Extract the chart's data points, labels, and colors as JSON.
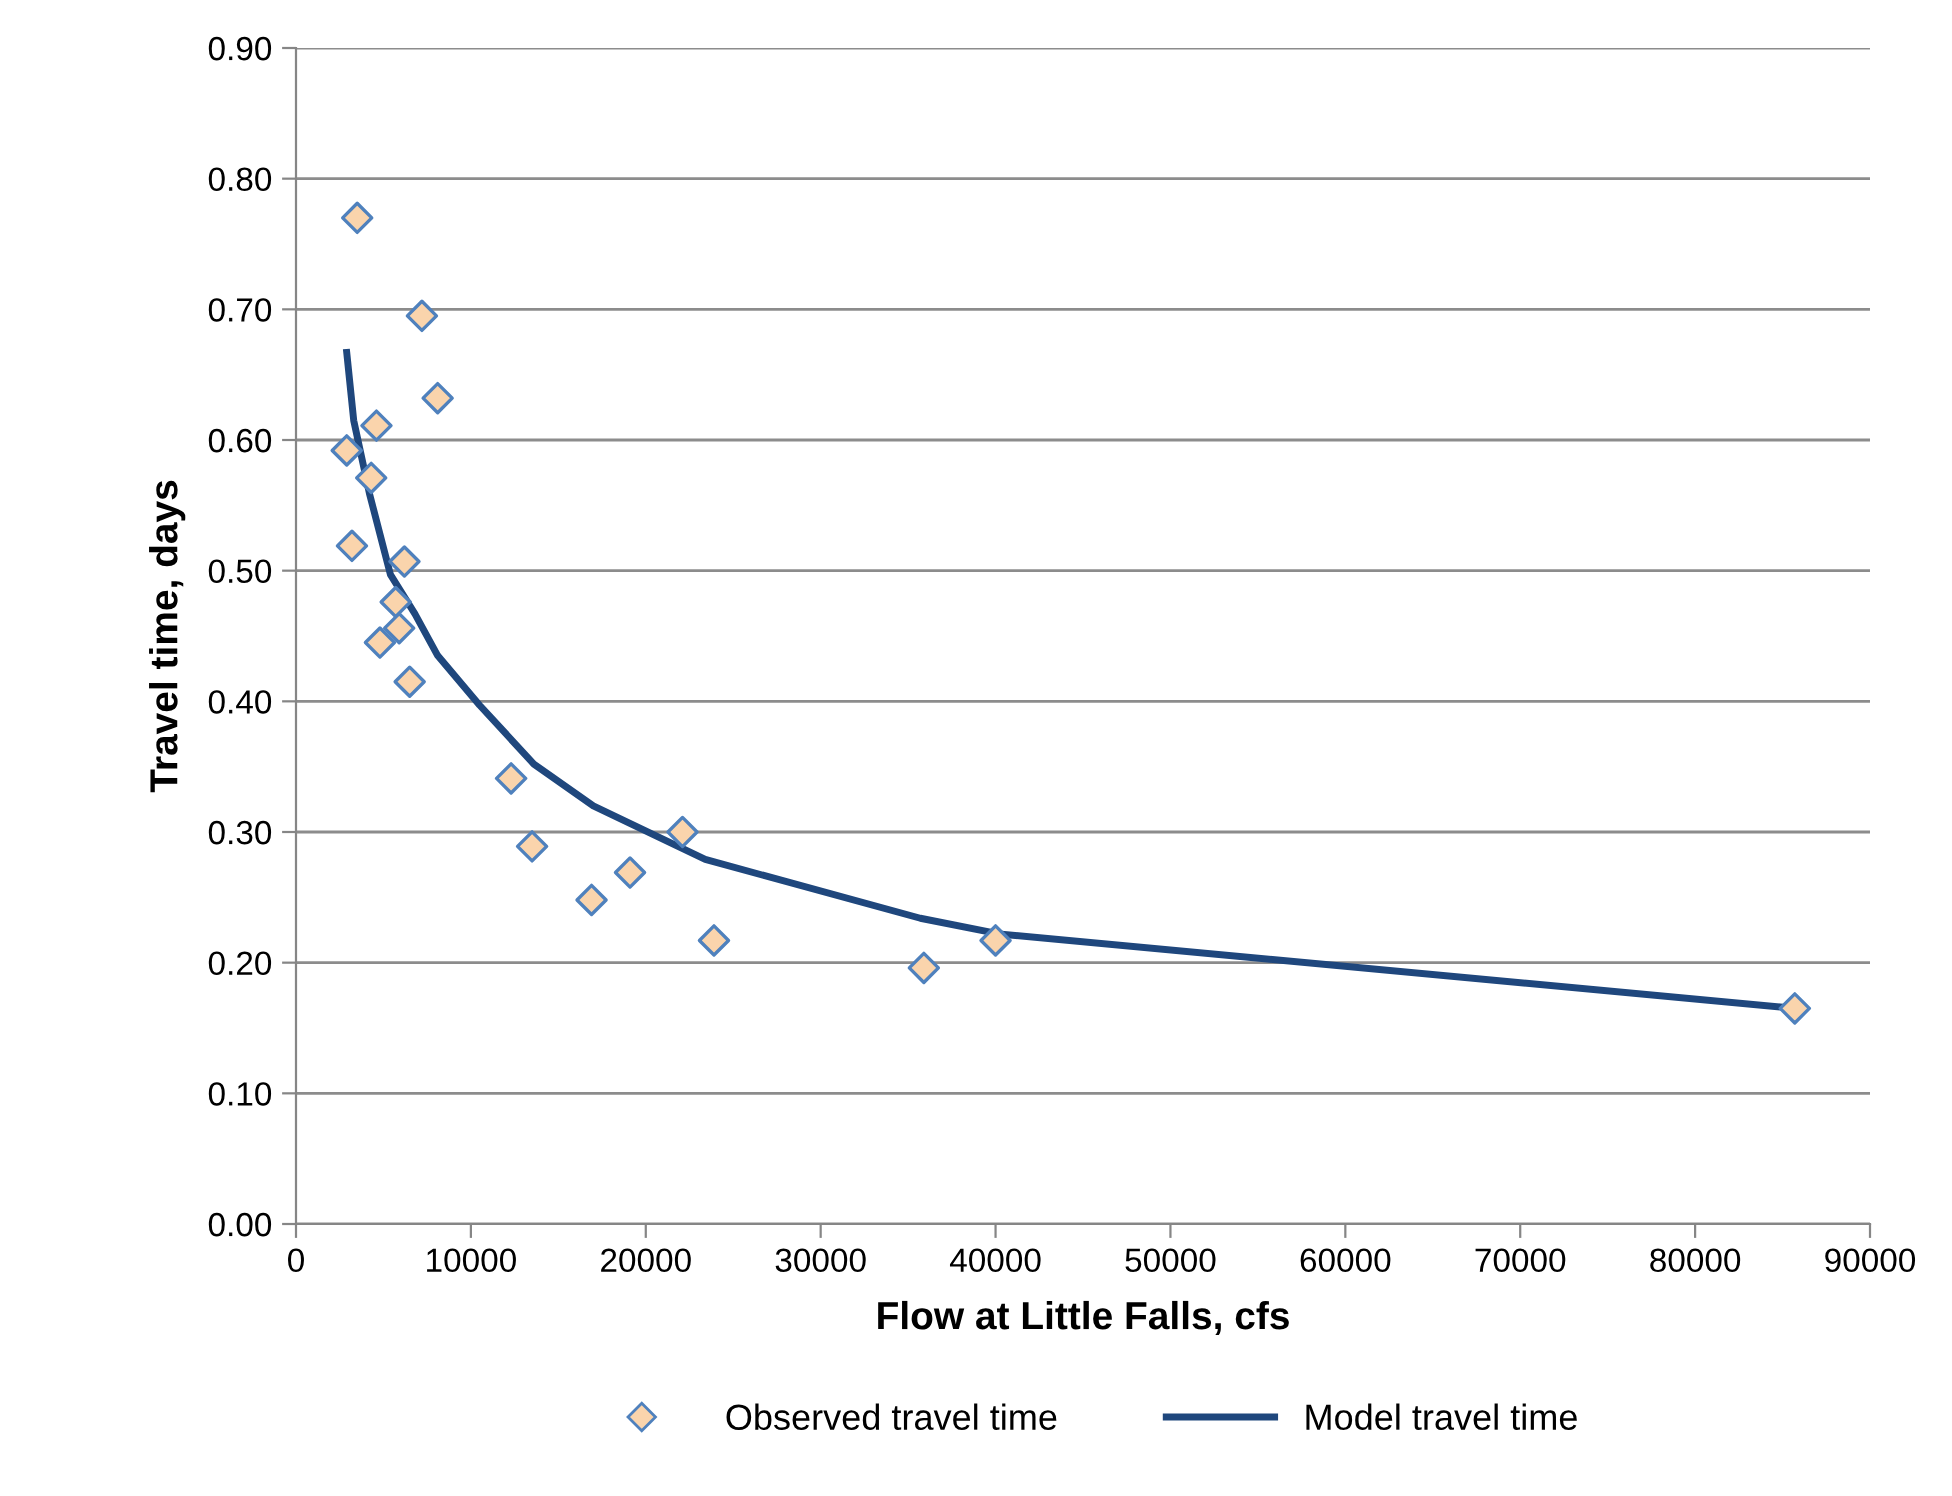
{
  "chart_data": {
    "type": "scatter",
    "xlabel": "Flow at Little Falls, cfs",
    "ylabel": "Travel time, days",
    "xlim": [
      0,
      90000
    ],
    "xticks": [
      0,
      10000,
      20000,
      30000,
      40000,
      50000,
      60000,
      70000,
      80000,
      90000
    ],
    "ylim": [
      0,
      0.9
    ],
    "yticks": [
      {
        "value": 0,
        "label": "0.00"
      },
      {
        "value": 0.1,
        "label": "0.10"
      },
      {
        "value": 0.2,
        "label": "0.20"
      },
      {
        "value": 0.3,
        "label": "0.30"
      },
      {
        "value": 0.4,
        "label": "0.40"
      },
      {
        "value": 0.5,
        "label": "0.50"
      },
      {
        "value": 0.6,
        "label": "0.60"
      },
      {
        "value": 0.7,
        "label": "0.70"
      },
      {
        "value": 0.8,
        "label": "0.80"
      },
      {
        "value": 0.9,
        "label": "0.90"
      }
    ],
    "grid": "y",
    "legend": "bottom",
    "series": [
      {
        "name": "Observed travel time",
        "marker": "diamond",
        "color": "#fad4ac",
        "x": [
          3500,
          7200,
          8100,
          4600,
          2900,
          4300,
          3200,
          6200,
          5700,
          5900,
          4800,
          6500,
          12300,
          13500,
          16900,
          19100,
          22100,
          23900,
          35900,
          40000,
          85700
        ],
        "values": [
          0.77,
          0.695,
          0.632,
          0.611,
          0.592,
          0.571,
          0.519,
          0.507,
          0.476,
          0.456,
          0.445,
          0.415,
          0.341,
          0.289,
          0.248,
          0.269,
          0.3,
          0.217,
          0.196,
          0.217,
          0.165
        ]
      },
      {
        "name": "Model travel time",
        "type": "line",
        "marker": "none",
        "color": "#1f477d",
        "x": [
          2900,
          3300,
          4200,
          5400,
          6800,
          8100,
          10500,
          13600,
          17000,
          23400,
          35700,
          40200,
          85700
        ],
        "values": [
          0.667,
          0.615,
          0.559,
          0.497,
          0.467,
          0.435,
          0.397,
          0.352,
          0.32,
          0.279,
          0.234,
          0.222,
          0.165
        ]
      }
    ]
  }
}
